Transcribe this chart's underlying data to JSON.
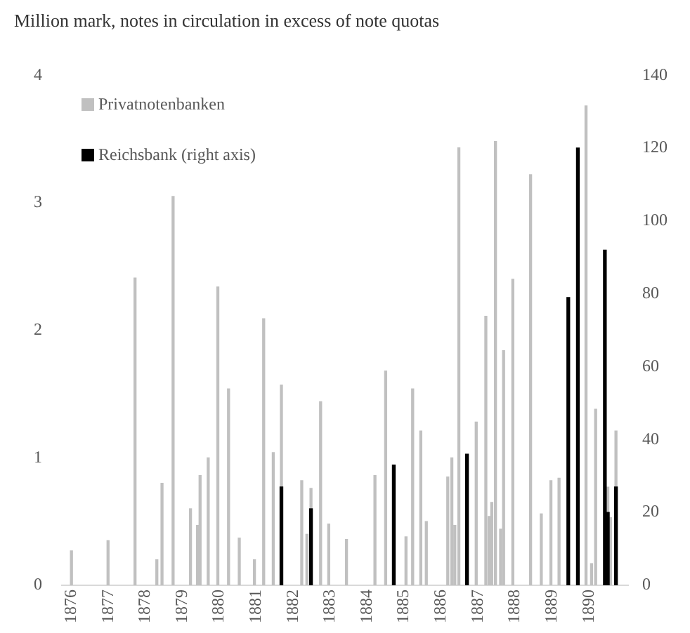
{
  "chart_data": {
    "type": "bar",
    "title": "Million mark, notes in circulation in excess of note quotas",
    "series": [
      {
        "name": "Privatnotenbanken",
        "color": "#c0c0c0",
        "x": [
          1876.0,
          1876.99,
          1877.72,
          1878.31,
          1878.45,
          1878.75,
          1879.22,
          1879.41,
          1879.48,
          1879.7,
          1879.96,
          1880.25,
          1880.54,
          1880.95,
          1881.2,
          1881.46,
          1881.68,
          1882.23,
          1882.37,
          1882.48,
          1882.74,
          1882.96,
          1883.44,
          1884.21,
          1884.5,
          1885.05,
          1885.23,
          1885.45,
          1885.6,
          1886.18,
          1886.29,
          1886.37,
          1886.48,
          1886.95,
          1887.21,
          1887.3,
          1887.37,
          1887.47,
          1887.61,
          1887.69,
          1887.94,
          1888.42,
          1888.71,
          1888.97,
          1889.19,
          1889.92,
          1890.07,
          1890.18,
          1890.51,
          1890.58,
          1890.73
        ],
        "values": [
          0.27,
          0.35,
          2.41,
          0.2,
          0.8,
          3.05,
          0.6,
          0.47,
          0.86,
          1.0,
          2.34,
          1.54,
          0.37,
          0.2,
          2.09,
          1.04,
          1.57,
          0.82,
          0.4,
          0.76,
          1.44,
          0.48,
          0.36,
          0.86,
          1.68,
          0.38,
          1.54,
          1.21,
          0.5,
          0.85,
          1.0,
          0.47,
          3.43,
          1.28,
          2.11,
          0.54,
          0.65,
          3.48,
          0.44,
          1.84,
          2.4,
          3.22,
          0.56,
          0.82,
          0.84,
          3.76,
          0.17,
          1.38,
          0.77,
          0.53,
          1.21
        ]
      },
      {
        "name": "Reichsbank (right axis)",
        "color": "#000000",
        "axis": "y2",
        "x": [
          1881.68,
          1882.48,
          1884.72,
          1886.7,
          1889.44,
          1889.7,
          1890.43,
          1890.51,
          1890.73
        ],
        "values": [
          27,
          21,
          33,
          36,
          79,
          120,
          92,
          20,
          27
        ]
      }
    ],
    "xlim": [
      1875.74,
      1891.06
    ],
    "xticks": [
      1876,
      1877,
      1878,
      1879,
      1880,
      1881,
      1882,
      1883,
      1884,
      1885,
      1886,
      1887,
      1888,
      1889,
      1890
    ],
    "ylim": [
      0,
      4
    ],
    "yticks": [
      0,
      1,
      2,
      3,
      4
    ],
    "y2lim": [
      0,
      140
    ],
    "y2ticks": [
      0,
      20,
      40,
      60,
      80,
      100,
      120,
      140
    ],
    "grid": false,
    "legend": "top left"
  }
}
